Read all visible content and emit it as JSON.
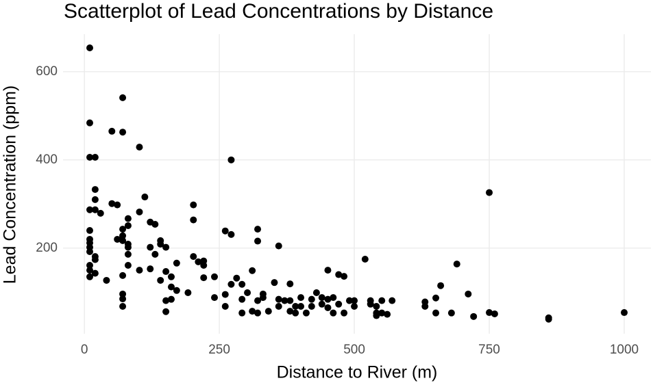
{
  "chart_data": {
    "type": "scatter",
    "title": "Scatterplot of Lead Concentrations by Distance",
    "x_label": "Distance to River (m)",
    "y_label": "Lead Concentration (ppm)",
    "color": "#000000",
    "grid": true,
    "xlim": [
      -39.5,
      1049.5
    ],
    "ylim": [
      6,
      685
    ],
    "xticks": [
      0,
      250,
      500,
      750,
      1000
    ],
    "yticks": [
      200,
      400,
      600
    ],
    "x": [
      10,
      10,
      10,
      20,
      71,
      51,
      71,
      102,
      272,
      750,
      20,
      10,
      20,
      20,
      30,
      51,
      61,
      102,
      112,
      81,
      10,
      10,
      10,
      10,
      10,
      10,
      10,
      10,
      20,
      20,
      20,
      41,
      61,
      71,
      71,
      71,
      71,
      71,
      71,
      71,
      81,
      81,
      81,
      81,
      81,
      102,
      122,
      122,
      122,
      131,
      131,
      141,
      141,
      151,
      151,
      141,
      161,
      161,
      151,
      151,
      171,
      171,
      161,
      192,
      202,
      202,
      202,
      211,
      221,
      221,
      221,
      241,
      241,
      261,
      272,
      261,
      261,
      272,
      282,
      292,
      292,
      292,
      302,
      311,
      311,
      321,
      321,
      321,
      321,
      331,
      331,
      341,
      352,
      360,
      360,
      360,
      371,
      381,
      381,
      381,
      391,
      391,
      401,
      401,
      411,
      421,
      421,
      430,
      440,
      440,
      451,
      451,
      451,
      461,
      461,
      471,
      471,
      481,
      481,
      491,
      500,
      500,
      520,
      530,
      530,
      541,
      541,
      541,
      551,
      551,
      561,
      570,
      631,
      631,
      651,
      651,
      660,
      690,
      680,
      711,
      721,
      750,
      760,
      860,
      860,
      1000
    ],
    "y": [
      654,
      484,
      406,
      406,
      541,
      465,
      463,
      429,
      400,
      326,
      333,
      287,
      310,
      287,
      279,
      301,
      298,
      282,
      316,
      267,
      240,
      220,
      212,
      202,
      192,
      161,
      150,
      135,
      181,
      174,
      143,
      127,
      220,
      243,
      228,
      217,
      138,
      96,
      85,
      68,
      251,
      209,
      202,
      186,
      161,
      150,
      259,
      202,
      153,
      254,
      186,
      217,
      209,
      202,
      147,
      127,
      135,
      112,
      81,
      56,
      166,
      104,
      84,
      99,
      298,
      264,
      181,
      169,
      171,
      161,
      133,
      135,
      88,
      239,
      231,
      95,
      68,
      118,
      132,
      118,
      84,
      53,
      99,
      149,
      57,
      243,
      216,
      81,
      53,
      96,
      88,
      57,
      122,
      205,
      84,
      68,
      81,
      119,
      81,
      57,
      68,
      53,
      88,
      68,
      53,
      84,
      68,
      99,
      88,
      73,
      150,
      84,
      65,
      88,
      53,
      73,
      140,
      136,
      53,
      81,
      81,
      68,
      175,
      81,
      73,
      68,
      53,
      47,
      81,
      53,
      50,
      81,
      78,
      68,
      87,
      53,
      115,
      164,
      53,
      96,
      45,
      54,
      51,
      42,
      39,
      54
    ]
  }
}
